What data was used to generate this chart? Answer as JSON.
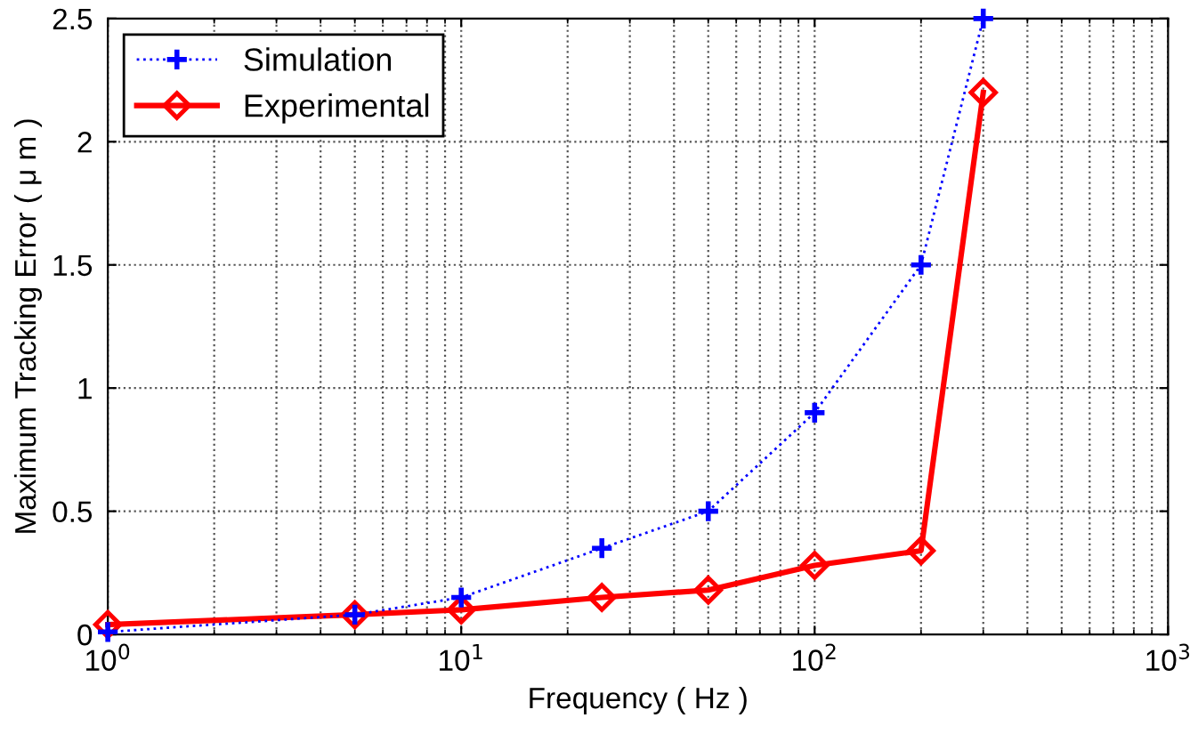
{
  "chart_data": {
    "type": "line",
    "xlabel": "Frequency ( Hz )",
    "ylabel": "Maximum Tracking Error ( μ m )",
    "x": [
      1,
      5,
      10,
      25,
      50,
      100,
      200,
      300
    ],
    "series": [
      {
        "name": "Simulation",
        "color": "#0000ff",
        "values": [
          0.01,
          0.08,
          0.15,
          0.35,
          0.5,
          0.9,
          1.5,
          2.5
        ],
        "marker": "cross",
        "line_style": "dotted"
      },
      {
        "name": "Experimental",
        "color": "#ff0000",
        "values": [
          0.04,
          0.08,
          0.1,
          0.15,
          0.18,
          0.28,
          0.34,
          2.2
        ],
        "marker": "diamond",
        "line_style": "solid"
      }
    ],
    "log": "x",
    "xlim": [
      1,
      1000
    ],
    "xticks": [
      {
        "value": 1,
        "label": "10$^{0}$"
      },
      {
        "value": 10,
        "label": "10$^{1}$"
      },
      {
        "value": 100,
        "label": "10$^{2}$"
      },
      {
        "value": 1000,
        "label": "10$^{3}$"
      }
    ],
    "ylim": [
      0,
      2.5
    ],
    "yticks": [
      0,
      0.5,
      1,
      1.5,
      2,
      2.5
    ],
    "grid": true,
    "legend": "top left"
  }
}
